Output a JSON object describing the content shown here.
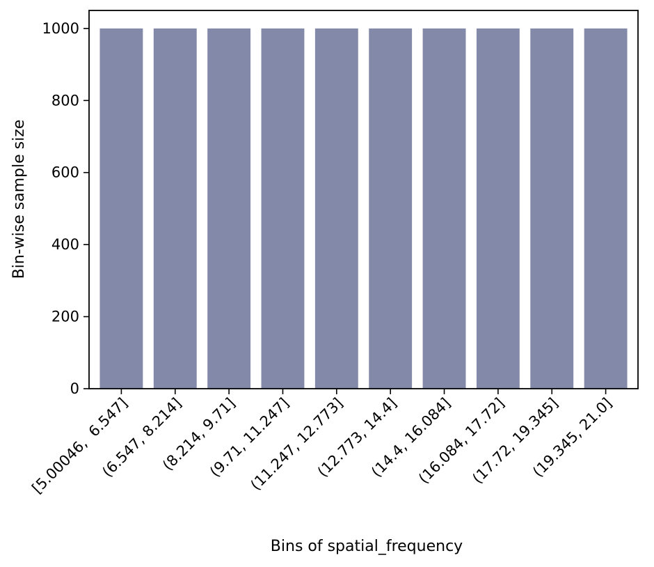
{
  "chart_data": {
    "type": "bar",
    "categories": [
      "[5.00046,  6.547]",
      "(6.547, 8.214]",
      "(8.214, 9.71]",
      "(9.71, 11.247]",
      "(11.247, 12.773]",
      "(12.773, 14.4]",
      "(14.4, 16.084]",
      "(16.084, 17.72]",
      "(17.72, 19.345]",
      "(19.345, 21.0]"
    ],
    "values": [
      1000,
      1000,
      1000,
      1000,
      1000,
      1000,
      1000,
      1000,
      1000,
      1000
    ],
    "xlabel": "Bins of spatial_frequency",
    "ylabel": "Bin-wise sample size",
    "ylim": [
      0,
      1050
    ],
    "yticks": [
      "0",
      "200",
      "400",
      "600",
      "800",
      "1000"
    ],
    "bar_color": "#8389a8",
    "grid": false
  }
}
